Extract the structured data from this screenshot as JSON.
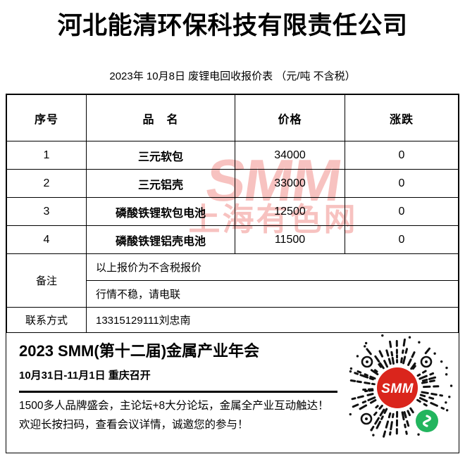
{
  "page": {
    "title": "河北能清环保科技有限责任公司",
    "subtitle": "2023年 10月8日 废锂电回收报价表 （元/吨  不含税）"
  },
  "table": {
    "headers": [
      "序号",
      "品　名",
      "价格",
      "涨跌"
    ],
    "rows": [
      {
        "no": "1",
        "name": "三元软包",
        "price": "34000",
        "change": "0"
      },
      {
        "no": "2",
        "name": "三元铝壳",
        "price": "33000",
        "change": "0"
      },
      {
        "no": "3",
        "name": "磷酸铁锂软包电池",
        "price": "12500",
        "change": "0"
      },
      {
        "no": "4",
        "name": "磷酸铁锂铝壳电池",
        "price": "11500",
        "change": "0"
      }
    ],
    "remark_label": "备注",
    "remarks": [
      "以上报价为不含税报价",
      "行情不稳，请电联"
    ],
    "contact_label": "联系方式",
    "contact_value": "13315129111刘忠南"
  },
  "watermark": {
    "logo": "SMM",
    "text": "上海有色网",
    "color": "#e85048"
  },
  "footer": {
    "title": "2023 SMM(第十二届)金属产业年会",
    "date_line": "10月31日-11月1日  重庆召开",
    "line1": "1500多人品牌盛会，主论坛+8大分论坛，金属全产业互动触达！",
    "line2": "欢迎长按扫码，查看会议详情，诚邀您的参与！",
    "qr": {
      "logo": "SMM",
      "brand_red": "#da251c",
      "wechat_green": "#22b55e",
      "dash_color": "#111111"
    }
  }
}
